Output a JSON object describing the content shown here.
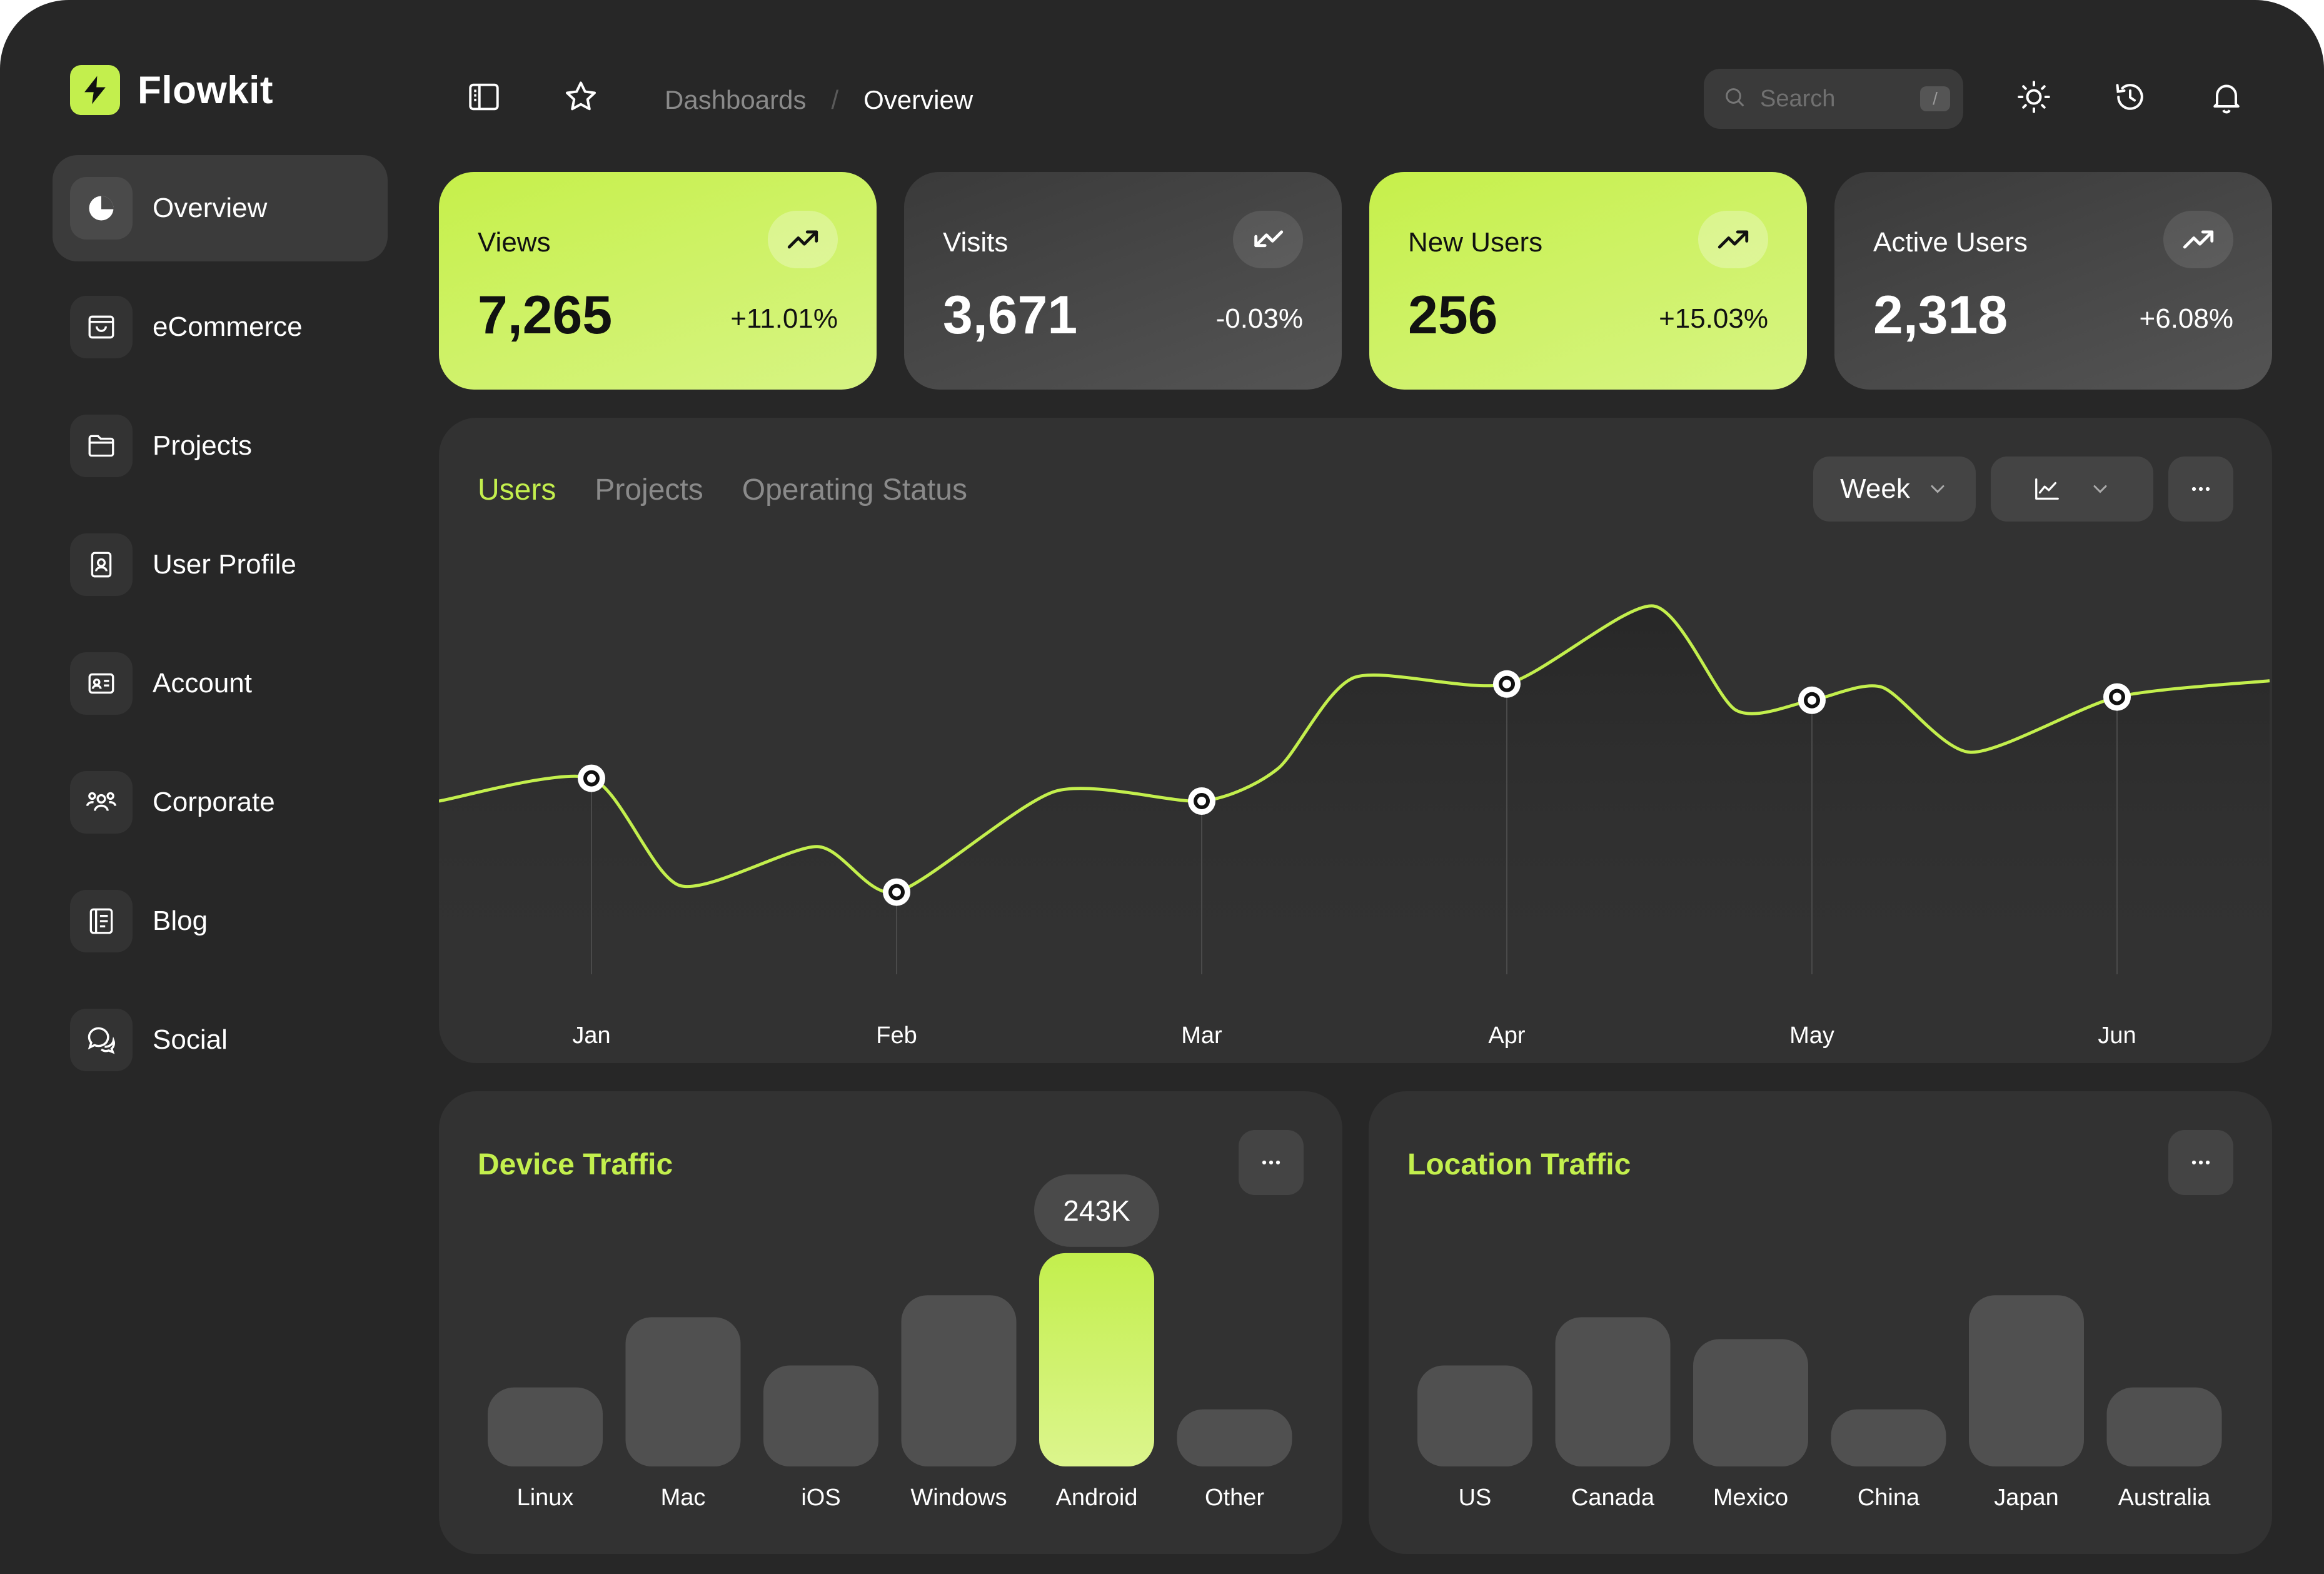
{
  "app": {
    "name": "Flowkit"
  },
  "sidebar": {
    "items": [
      {
        "label": "Overview",
        "active": true
      },
      {
        "label": "eCommerce",
        "active": false
      },
      {
        "label": "Projects",
        "active": false
      },
      {
        "label": "User Profile",
        "active": false
      },
      {
        "label": "Account",
        "active": false
      },
      {
        "label": "Corporate",
        "active": false
      },
      {
        "label": "Blog",
        "active": false
      },
      {
        "label": "Social",
        "active": false
      }
    ]
  },
  "header": {
    "breadcrumb_parent": "Dashboards",
    "breadcrumb_separator": "/",
    "breadcrumb_current": "Overview",
    "search_placeholder": "Search",
    "search_shortcut": "/"
  },
  "stats": [
    {
      "title": "Views",
      "value": "7,265",
      "change": "+11.01%",
      "trend": "up",
      "style": "lime"
    },
    {
      "title": "Visits",
      "value": "3,671",
      "change": "-0.03%",
      "trend": "down",
      "style": "dark"
    },
    {
      "title": "New Users",
      "value": "256",
      "change": "+15.03%",
      "trend": "up",
      "style": "lime"
    },
    {
      "title": "Active Users",
      "value": "2,318",
      "change": "+6.08%",
      "trend": "up",
      "style": "dark"
    }
  ],
  "main_chart": {
    "tabs": [
      {
        "label": "Users",
        "active": true
      },
      {
        "label": "Projects",
        "active": false
      },
      {
        "label": "Operating Status",
        "active": false
      }
    ],
    "period_label": "Week"
  },
  "device_traffic": {
    "title": "Device Traffic"
  },
  "location_traffic": {
    "title": "Location Traffic"
  },
  "colors": {
    "accent": "#c3ef4d",
    "background": "#272727",
    "panel": "#323232",
    "bar": "#505050"
  },
  "chart_data": [
    {
      "type": "line",
      "title": "Users",
      "categories": [
        "Jan",
        "Feb",
        "Mar",
        "Apr",
        "May",
        "Jun"
      ],
      "x": [
        -0.5,
        0,
        0.29,
        0.74,
        1,
        1.52,
        2,
        2.25,
        2.5,
        3,
        3.48,
        3.75,
        4,
        4.23,
        4.52,
        5,
        5.5
      ],
      "values": [
        60,
        67,
        34,
        46,
        32,
        63,
        60,
        70,
        98,
        96,
        120,
        88,
        91,
        95,
        75,
        92,
        97
      ],
      "markers_at": [
        "Jan",
        "Feb",
        "Mar",
        "Apr",
        "May",
        "Jun"
      ],
      "ylim": [
        0,
        140
      ],
      "grid": false
    },
    {
      "type": "bar",
      "title": "Device Traffic",
      "categories": [
        "Linux",
        "Mac",
        "iOS",
        "Windows",
        "Android",
        "Other"
      ],
      "values": [
        90,
        170,
        115,
        195,
        243,
        65
      ],
      "highlight": "Android",
      "highlight_label": "243K"
    },
    {
      "type": "bar",
      "title": "Location Traffic",
      "categories": [
        "US",
        "Canada",
        "Mexico",
        "China",
        "Japan",
        "Australia"
      ],
      "values": [
        115,
        170,
        145,
        65,
        195,
        90
      ]
    }
  ]
}
